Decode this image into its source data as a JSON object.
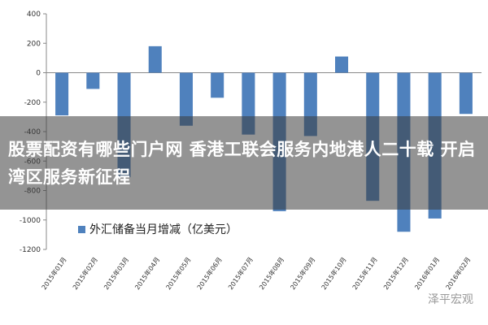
{
  "banner": {
    "text": "股票配资有哪些门户网 香港工联会服务内地港人二十载 开启湾区服务新征程"
  },
  "watermark": {
    "text": "泽平宏观"
  },
  "chart_data": {
    "type": "bar",
    "title": "",
    "xlabel": "",
    "ylabel": "",
    "ylim": [
      -1200,
      400
    ],
    "yticks": [
      400,
      200,
      0,
      -200,
      -400,
      -600,
      -800,
      -1000,
      -1200
    ],
    "grid": false,
    "legend_position": "bottom-left",
    "categories": [
      "2015年01月",
      "2015年02月",
      "2015年03月",
      "2015年04月",
      "2015年05月",
      "2015年06月",
      "2015年07月",
      "2015年08月",
      "2015年09月",
      "2015年10月",
      "2015年11月",
      "2015年12月",
      "2016年01月",
      "2016年02月"
    ],
    "series": [
      {
        "name": "外汇储备当月增减（亿美元）",
        "color": "#4f81bd",
        "values": [
          -290,
          -110,
          -710,
          180,
          -360,
          -170,
          -420,
          -940,
          -430,
          110,
          -870,
          -1080,
          -990,
          -280
        ]
      }
    ]
  }
}
